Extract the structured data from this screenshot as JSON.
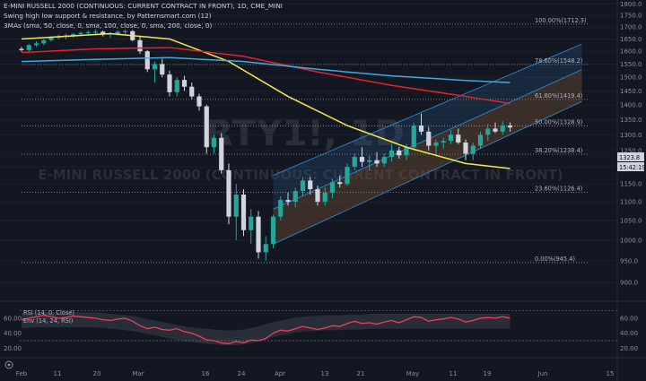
{
  "header": {
    "title": "E-MINI RUSSELL 2000 (CONTINUOUS: CURRENT CONTRACT IN FRONT), 1D, CME_MINI",
    "indicator_1": "Swing high low support & resistance, by Patternsmart.com (12)",
    "indicator_2": "3MAs (sma, 50, close, 0, sma, 100, close, 0, sma, 200, close, 0)"
  },
  "watermark": {
    "symbol": "RTY1!, 1D",
    "name": "E-MINI RUSSELL 2000 (CONTINUOUS: CURRENT CONTRACT IN FRONT)"
  },
  "price_tags": {
    "last_price": "1323.8",
    "countdown": "15:42:19"
  },
  "rsi_pane": {
    "label_1": "RSI (14, 0, Close)",
    "label_2": "Env (14, 24, RSI)"
  },
  "colors": {
    "background": "#131722",
    "bull_candle": "#26a69a",
    "bear_candle": "#d1d4dc",
    "sma50": "#f5e94a",
    "sma100": "#e0242a",
    "sma200": "#3fa9e0",
    "channel_upper": "#2a5a86",
    "channel_lower": "#6b4c30",
    "rsi_line": "#ef3e5b"
  },
  "chart_data": [
    {
      "type": "candlestick",
      "title": "E-MINI RUSSELL 2000 (CONTINUOUS: CURRENT CONTRACT IN FRONT), 1D, CME_MINI",
      "price_axis": {
        "ticks": [
          "1800.0",
          "1750.0",
          "1700.0",
          "1650.0",
          "1600.0",
          "1550.0",
          "1500.0",
          "1450.0",
          "1400.0",
          "1350.0",
          "1300.0",
          "1250.0",
          "1200.0",
          "1150.0",
          "1100.0",
          "1050.0",
          "1000.0",
          "950.0",
          "900.0"
        ],
        "range": [
          890,
          1810
        ],
        "scale": "log"
      },
      "time_axis": {
        "labels": [
          "Feb",
          "11",
          "20",
          "Mar",
          "16",
          "24",
          "Apr",
          "13",
          "21",
          "May",
          "11",
          "19",
          "Jun",
          "15"
        ]
      },
      "candles": [
        [
          1610,
          1618,
          1598,
          1605
        ],
        [
          1605,
          1630,
          1600,
          1625
        ],
        [
          1625,
          1640,
          1618,
          1632
        ],
        [
          1632,
          1650,
          1625,
          1645
        ],
        [
          1645,
          1660,
          1640,
          1655
        ],
        [
          1655,
          1668,
          1648,
          1660
        ],
        [
          1660,
          1672,
          1650,
          1665
        ],
        [
          1665,
          1675,
          1655,
          1670
        ],
        [
          1670,
          1680,
          1662,
          1675
        ],
        [
          1675,
          1685,
          1665,
          1678
        ],
        [
          1678,
          1690,
          1668,
          1680
        ],
        [
          1680,
          1685,
          1660,
          1668
        ],
        [
          1668,
          1678,
          1655,
          1672
        ],
        [
          1672,
          1685,
          1665,
          1680
        ],
        [
          1680,
          1690,
          1670,
          1682
        ],
        [
          1682,
          1688,
          1640,
          1645
        ],
        [
          1645,
          1660,
          1590,
          1600
        ],
        [
          1600,
          1605,
          1520,
          1530
        ],
        [
          1530,
          1560,
          1480,
          1550
        ],
        [
          1550,
          1570,
          1500,
          1510
        ],
        [
          1510,
          1525,
          1430,
          1445
        ],
        [
          1445,
          1500,
          1430,
          1490
        ],
        [
          1490,
          1505,
          1450,
          1465
        ],
        [
          1465,
          1480,
          1420,
          1430
        ],
        [
          1430,
          1440,
          1380,
          1395
        ],
        [
          1395,
          1400,
          1240,
          1260
        ],
        [
          1260,
          1300,
          1240,
          1290
        ],
        [
          1290,
          1305,
          1180,
          1190
        ],
        [
          1190,
          1210,
          1040,
          1060
        ],
        [
          1060,
          1150,
          1000,
          1120
        ],
        [
          1120,
          1135,
          1010,
          1025
        ],
        [
          1025,
          1080,
          990,
          1060
        ],
        [
          1060,
          1075,
          955,
          970
        ],
        [
          970,
          1010,
          950,
          990
        ],
        [
          990,
          1065,
          980,
          1060
        ],
        [
          1060,
          1115,
          1050,
          1105
        ],
        [
          1105,
          1125,
          1090,
          1100
        ],
        [
          1100,
          1140,
          1085,
          1130
        ],
        [
          1130,
          1170,
          1115,
          1160
        ],
        [
          1160,
          1170,
          1120,
          1135
        ],
        [
          1135,
          1145,
          1090,
          1100
        ],
        [
          1100,
          1140,
          1090,
          1125
        ],
        [
          1125,
          1165,
          1110,
          1155
        ],
        [
          1155,
          1175,
          1140,
          1150
        ],
        [
          1150,
          1210,
          1145,
          1200
        ],
        [
          1200,
          1240,
          1190,
          1230
        ],
        [
          1230,
          1260,
          1200,
          1215
        ],
        [
          1215,
          1235,
          1190,
          1220
        ],
        [
          1220,
          1245,
          1200,
          1210
        ],
        [
          1210,
          1240,
          1200,
          1230
        ],
        [
          1230,
          1270,
          1215,
          1250
        ],
        [
          1250,
          1262,
          1225,
          1235
        ],
        [
          1235,
          1270,
          1220,
          1260
        ],
        [
          1260,
          1340,
          1250,
          1330
        ],
        [
          1330,
          1370,
          1300,
          1310
        ],
        [
          1310,
          1325,
          1250,
          1265
        ],
        [
          1265,
          1285,
          1235,
          1275
        ],
        [
          1275,
          1290,
          1255,
          1280
        ],
        [
          1280,
          1315,
          1270,
          1300
        ],
        [
          1300,
          1320,
          1270,
          1275
        ],
        [
          1275,
          1285,
          1220,
          1240
        ],
        [
          1240,
          1275,
          1220,
          1265
        ],
        [
          1265,
          1310,
          1255,
          1300
        ],
        [
          1300,
          1335,
          1280,
          1320
        ],
        [
          1320,
          1340,
          1305,
          1310
        ],
        [
          1310,
          1345,
          1300,
          1330
        ],
        [
          1330,
          1340,
          1310,
          1323.8
        ]
      ]
    },
    {
      "type": "line",
      "title": "3MAs (sma, 50, close, 0, sma, 100, close, 0, sma, 200, close, 0)",
      "series": [
        {
          "name": "sma 50",
          "color": "#f5e94a",
          "values": [
            [
              0,
              1650
            ],
            [
              12,
              1672
            ],
            [
              20,
              1650
            ],
            [
              28,
              1560
            ],
            [
              36,
              1430
            ],
            [
              44,
              1330
            ],
            [
              52,
              1260
            ],
            [
              60,
              1210
            ],
            [
              66,
              1195
            ]
          ]
        },
        {
          "name": "sma 100",
          "color": "#e0242a",
          "values": [
            [
              0,
              1595
            ],
            [
              10,
              1610
            ],
            [
              20,
              1615
            ],
            [
              30,
              1580
            ],
            [
              40,
              1520
            ],
            [
              50,
              1470
            ],
            [
              60,
              1430
            ],
            [
              66,
              1405
            ]
          ]
        },
        {
          "name": "sma 200",
          "color": "#3fa9e0",
          "values": [
            [
              0,
              1560
            ],
            [
              10,
              1568
            ],
            [
              20,
              1575
            ],
            [
              30,
              1560
            ],
            [
              40,
              1530
            ],
            [
              50,
              1505
            ],
            [
              60,
              1488
            ],
            [
              66,
              1480
            ]
          ]
        }
      ]
    },
    {
      "type": "line",
      "title": "Swing high low support & resistance, by Patternsmart.com (12)",
      "fib_levels": [
        {
          "label": "100.00%(1712.3)",
          "value": 1712.3
        },
        {
          "label": "78.60%(1548.2)",
          "value": 1548.2
        },
        {
          "label": "61.80%(1419.4)",
          "value": 1419.4
        },
        {
          "label": "50.00%(1328.9)",
          "value": 1328.9
        },
        {
          "label": "38.20%(1238.4)",
          "value": 1238.4
        },
        {
          "label": "23.60%(1126.4)",
          "value": 1126.4
        },
        {
          "label": "0.00%(945.4)",
          "value": 945.4
        }
      ],
      "channel": {
        "start_index": 34,
        "end_index": 66,
        "upper": [
          1175,
          1510
        ],
        "middle": [
          1080,
          1410
        ],
        "lower": [
          990,
          1300
        ]
      }
    },
    {
      "type": "line",
      "title": "RSI (14, 0, Close)",
      "y_axis": {
        "ticks": [
          "60.00",
          "40.00",
          "20.00"
        ],
        "range": [
          12,
          72
        ]
      },
      "guides": [
        70,
        30
      ],
      "series": [
        {
          "name": "RSI (14, 0, Close)",
          "color": "#ef3e5b",
          "values": [
            58,
            60,
            62,
            64,
            62,
            60,
            61,
            63,
            62,
            61,
            60,
            58,
            57,
            59,
            60,
            56,
            50,
            46,
            48,
            45,
            44,
            46,
            42,
            40,
            36,
            31,
            30,
            27,
            26,
            29,
            27,
            31,
            30,
            33,
            40,
            44,
            43,
            46,
            49,
            47,
            45,
            47,
            50,
            49,
            53,
            56,
            53,
            54,
            52,
            55,
            57,
            54,
            58,
            62,
            61,
            56,
            58,
            59,
            61,
            59,
            55,
            57,
            60,
            61,
            60,
            62,
            60
          ]
        },
        {
          "name": "Env (14, 24, RSI)",
          "color": "#8a8f9c",
          "upper": [
            67,
            67,
            68,
            68,
            68,
            68,
            68,
            68,
            68,
            68,
            68,
            67,
            66,
            65,
            64,
            63,
            61,
            59,
            57,
            55,
            53,
            51,
            49,
            48,
            47,
            46,
            45,
            44,
            44,
            44,
            45,
            47,
            49,
            52,
            55,
            57,
            59,
            61,
            62,
            63,
            63,
            64,
            64,
            64,
            65,
            65,
            65,
            66,
            66,
            66,
            66,
            66,
            66,
            66,
            66,
            66,
            66,
            66,
            66,
            66,
            66,
            66,
            66,
            66,
            66,
            66,
            66
          ],
          "lower": [
            47,
            47,
            48,
            48,
            48,
            48,
            48,
            48,
            48,
            48,
            48,
            47,
            46,
            45,
            44,
            43,
            41,
            39,
            37,
            35,
            33,
            31,
            29,
            28,
            27,
            26,
            25,
            24,
            24,
            24,
            25,
            27,
            29,
            32,
            35,
            37,
            39,
            41,
            42,
            43,
            43,
            44,
            44,
            44,
            45,
            45,
            45,
            46,
            46,
            46,
            46,
            46,
            46,
            46,
            46,
            46,
            46,
            46,
            46,
            46,
            46,
            46,
            46,
            46,
            46,
            46,
            46
          ]
        }
      ]
    }
  ]
}
